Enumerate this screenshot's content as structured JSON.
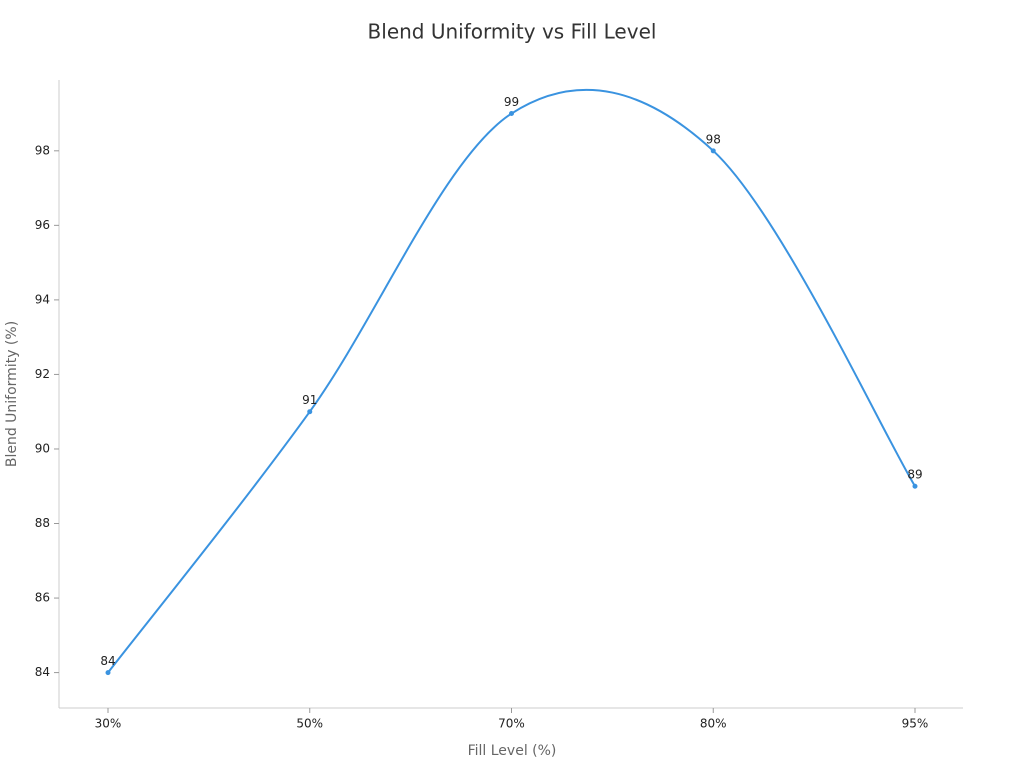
{
  "chart_data": {
    "type": "line",
    "title": "Blend Uniformity vs Fill Level",
    "x_label": "Fill Level (%)",
    "y_label": "Blend Uniformity (%)",
    "categories": [
      "30%",
      "50%",
      "70%",
      "80%",
      "95%"
    ],
    "series": [
      {
        "name": "Blend Uniformity",
        "color": "#3a93e0",
        "values": [
          84,
          91,
          99,
          98,
          89
        ]
      }
    ],
    "ylim": [
      83.05,
      99.9
    ],
    "yticks": [
      84,
      86,
      88,
      90,
      92,
      94,
      96,
      98
    ],
    "smooth": true,
    "data_labels": true
  }
}
